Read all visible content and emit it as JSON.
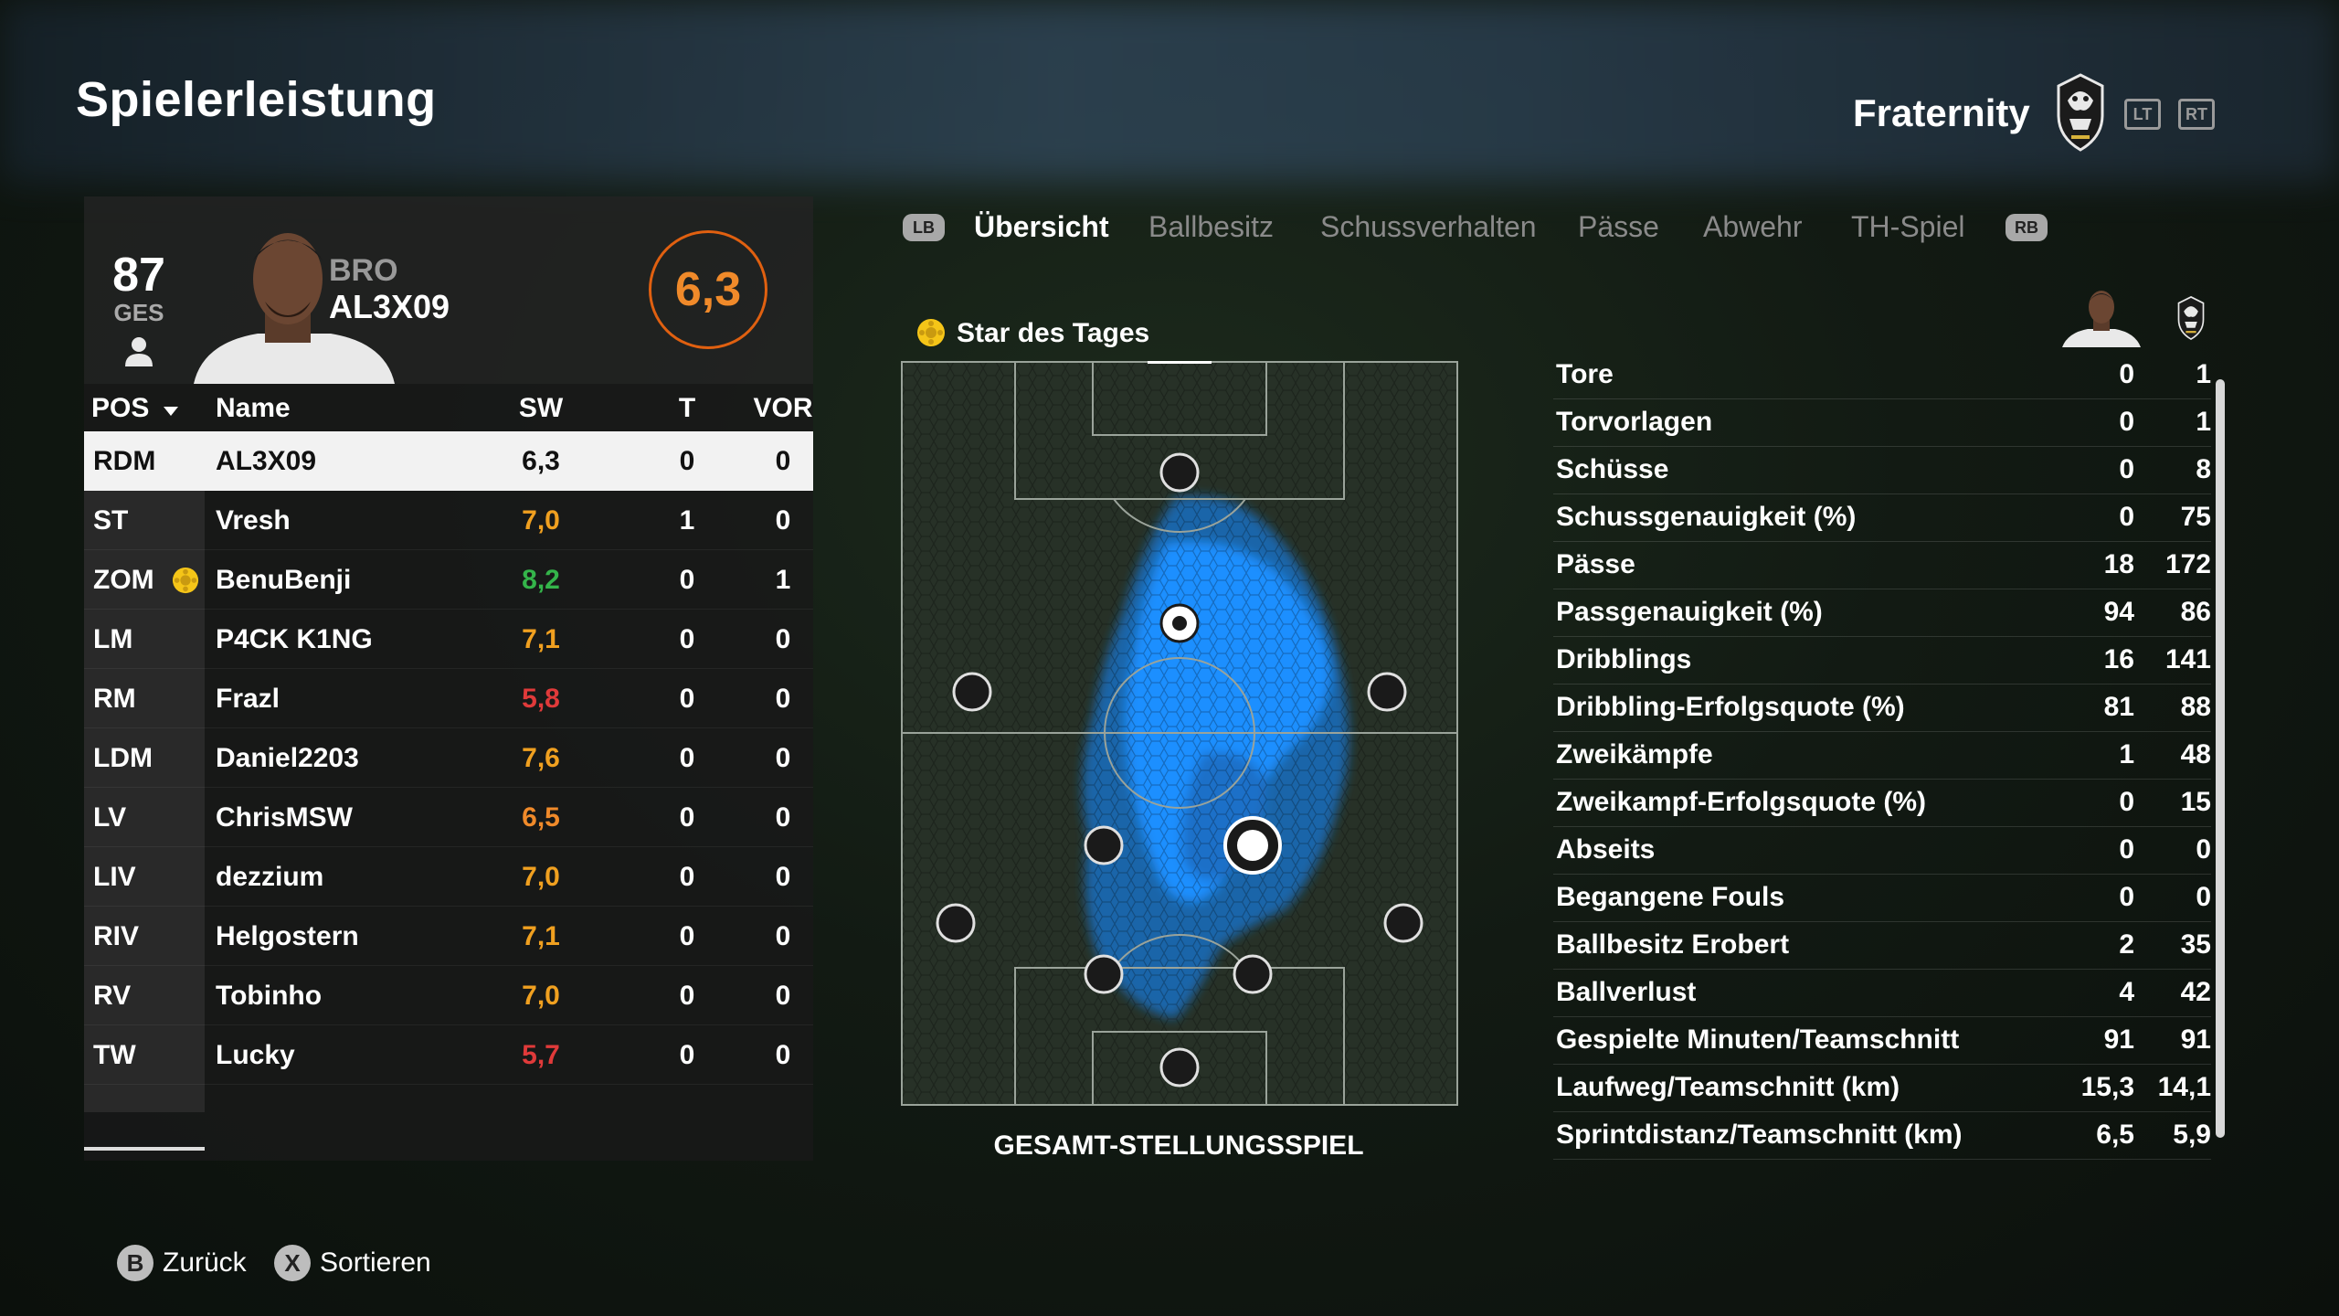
{
  "header": {
    "title": "Spielerleistung",
    "team_name": "Fraternity",
    "left_trigger": "LT",
    "right_trigger": "RT"
  },
  "player": {
    "overall": "87",
    "overall_label": "GES",
    "position": "BRO",
    "name": "AL3X09",
    "rating": "6,3"
  },
  "table": {
    "headers": {
      "pos": "POS",
      "name": "Name",
      "sw": "SW",
      "t": "T",
      "vor": "VOR"
    },
    "rows": [
      {
        "pos": "RDM",
        "name": "AL3X09",
        "sw": "6,3",
        "t": "0",
        "vor": "0",
        "color": "#111111",
        "star": false,
        "selected": true
      },
      {
        "pos": "ST",
        "name": "Vresh",
        "sw": "7,0",
        "t": "1",
        "vor": "0",
        "color": "#f0a020",
        "star": false
      },
      {
        "pos": "ZOM",
        "name": "BenuBenji",
        "sw": "8,2",
        "t": "0",
        "vor": "1",
        "color": "#34b44a",
        "star": true
      },
      {
        "pos": "LM",
        "name": "P4CK K1NG",
        "sw": "7,1",
        "t": "0",
        "vor": "0",
        "color": "#f0a020",
        "star": false
      },
      {
        "pos": "RM",
        "name": "Frazl",
        "sw": "5,8",
        "t": "0",
        "vor": "0",
        "color": "#e03a3a",
        "star": false
      },
      {
        "pos": "LDM",
        "name": "Daniel2203",
        "sw": "7,6",
        "t": "0",
        "vor": "0",
        "color": "#f0a020",
        "star": false
      },
      {
        "pos": "LV",
        "name": "ChrisMSW",
        "sw": "6,5",
        "t": "0",
        "vor": "0",
        "color": "#f08a2a",
        "star": false
      },
      {
        "pos": "LIV",
        "name": "dezzium",
        "sw": "7,0",
        "t": "0",
        "vor": "0",
        "color": "#f0a020",
        "star": false
      },
      {
        "pos": "RIV",
        "name": "Helgostern",
        "sw": "7,1",
        "t": "0",
        "vor": "0",
        "color": "#f0a020",
        "star": false
      },
      {
        "pos": "RV",
        "name": "Tobinho",
        "sw": "7,0",
        "t": "0",
        "vor": "0",
        "color": "#f0a020",
        "star": false
      },
      {
        "pos": "TW",
        "name": "Lucky",
        "sw": "5,7",
        "t": "0",
        "vor": "0",
        "color": "#e03a3a",
        "star": false
      }
    ]
  },
  "tabs": {
    "lb": "LB",
    "rb": "RB",
    "items": [
      "Übersicht",
      "Ballbesitz",
      "Schussverhalten",
      "Pässe",
      "Abwehr",
      "TH-Spiel"
    ],
    "active": 0
  },
  "star_of_day": "Star des Tages",
  "pitch_caption": "GESAMT-STELLUNGSSPIEL",
  "stats": [
    {
      "label": "Tore",
      "player": "0",
      "team": "1"
    },
    {
      "label": "Torvorlagen",
      "player": "0",
      "team": "1"
    },
    {
      "label": "Schüsse",
      "player": "0",
      "team": "8"
    },
    {
      "label": "Schussgenauigkeit (%)",
      "player": "0",
      "team": "75"
    },
    {
      "label": "Pässe",
      "player": "18",
      "team": "172"
    },
    {
      "label": "Passgenauigkeit (%)",
      "player": "94",
      "team": "86"
    },
    {
      "label": "Dribblings",
      "player": "16",
      "team": "141"
    },
    {
      "label": "Dribbling-Erfolgsquote (%)",
      "player": "81",
      "team": "88"
    },
    {
      "label": "Zweikämpfe",
      "player": "1",
      "team": "48"
    },
    {
      "label": "Zweikampf-Erfolgsquote (%)",
      "player": "0",
      "team": "15"
    },
    {
      "label": "Abseits",
      "player": "0",
      "team": "0"
    },
    {
      "label": "Begangene Fouls",
      "player": "0",
      "team": "0"
    },
    {
      "label": "Ballbesitz Erobert",
      "player": "2",
      "team": "35"
    },
    {
      "label": "Ballverlust",
      "player": "4",
      "team": "42"
    },
    {
      "label": "Gespielte Minuten/Teamschnitt",
      "player": "91",
      "team": "91"
    },
    {
      "label": "Laufweg/Teamschnitt (km)",
      "player": "15,3",
      "team": "14,1"
    },
    {
      "label": "Sprintdistanz/Teamschnitt (km)",
      "player": "6,5",
      "team": "5,9"
    }
  ],
  "footer": {
    "back_button": "B",
    "back_label": "Zurück",
    "sort_button": "X",
    "sort_label": "Sortieren"
  },
  "colors": {
    "accent": "#f08a2a",
    "heatmap": "#1a8fff"
  }
}
